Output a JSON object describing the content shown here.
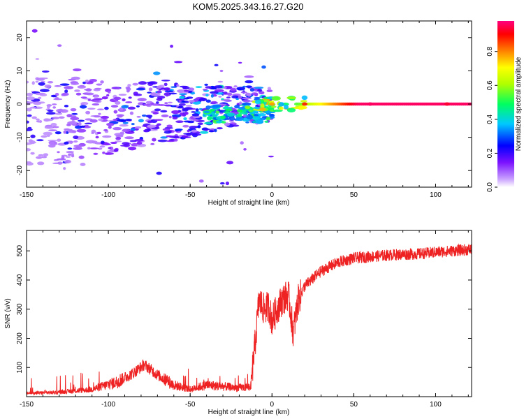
{
  "title": "KOM5.2025.343.16.27.G20",
  "colors": {
    "snr_line": "#ee2222",
    "axis": "#000000",
    "background": "#ffffff"
  },
  "chart_data": [
    {
      "type": "heatmap",
      "name": "spectrogram",
      "xlabel": "Height of straight line (km)",
      "ylabel": "Frequency (Hz)",
      "xlim": [
        -150,
        122
      ],
      "ylim": [
        -25,
        25
      ],
      "xticks": [
        -150,
        -100,
        -50,
        0,
        50,
        100
      ],
      "yticks": [
        -20,
        -10,
        0,
        10,
        20
      ],
      "colorbar": {
        "label": "Normalized spectral amplitude",
        "range": [
          0,
          0.98
        ],
        "ticks": [
          0.0,
          0.2,
          0.4,
          0.6,
          0.8
        ]
      },
      "description_points": [
        {
          "x": -145,
          "y": 22,
          "amp": 0.15
        },
        {
          "x": -120,
          "y": -10,
          "amp": 0.2
        },
        {
          "x": -80,
          "y": -5,
          "amp": 0.35
        },
        {
          "x": -55,
          "y": 2,
          "amp": 0.4
        },
        {
          "x": -30,
          "y": -4,
          "amp": 0.5
        },
        {
          "x": -15,
          "y": -1,
          "amp": 0.6
        },
        {
          "x": 0,
          "y": 0,
          "amp": 0.8
        },
        {
          "x": 20,
          "y": 0,
          "amp": 0.9
        },
        {
          "x": 60,
          "y": 0,
          "amp": 0.98
        },
        {
          "x": 107,
          "y": 0,
          "amp": 0.95
        }
      ]
    },
    {
      "type": "line",
      "name": "snr",
      "xlabel": "Height of straight line (km)",
      "ylabel": "SNR (v/v)",
      "xlim": [
        -150,
        122
      ],
      "ylim": [
        0,
        570
      ],
      "xticks": [
        -150,
        -100,
        -50,
        0,
        50,
        100
      ],
      "yticks": [
        100,
        200,
        300,
        400,
        500
      ],
      "series": [
        {
          "name": "SNR",
          "x": [
            -150,
            -130,
            -110,
            -95,
            -85,
            -78,
            -70,
            -60,
            -50,
            -40,
            -30,
            -20,
            -13,
            -10,
            -8,
            -5,
            -2,
            0,
            3,
            6,
            10,
            13,
            16,
            20,
            30,
            40,
            50,
            60,
            70,
            80,
            90,
            100,
            110,
            122
          ],
          "y": [
            12,
            15,
            25,
            50,
            80,
            110,
            75,
            40,
            25,
            40,
            35,
            30,
            35,
            200,
            330,
            300,
            310,
            260,
            300,
            330,
            350,
            220,
            330,
            380,
            430,
            460,
            475,
            480,
            485,
            488,
            490,
            495,
            500,
            505
          ]
        }
      ]
    }
  ]
}
